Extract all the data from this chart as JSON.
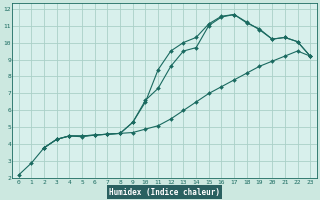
{
  "xlabel": "Humidex (Indice chaleur)",
  "bg_color": "#cce8e0",
  "plot_bg_color": "#d8f0ec",
  "label_bg_color": "#2a6060",
  "grid_color": "#aad0c8",
  "line_color": "#1a6a60",
  "label_fg_color": "#ffffff",
  "xlim": [
    -0.5,
    23.5
  ],
  "ylim": [
    2,
    12.3
  ],
  "xticks": [
    0,
    1,
    2,
    3,
    4,
    5,
    6,
    7,
    8,
    9,
    10,
    11,
    12,
    13,
    14,
    15,
    16,
    17,
    18,
    19,
    20,
    21,
    22,
    23
  ],
  "yticks": [
    2,
    3,
    4,
    5,
    6,
    7,
    8,
    9,
    10,
    11,
    12
  ],
  "line1_x": [
    0,
    1,
    2,
    3,
    4,
    5,
    6,
    7,
    8,
    9,
    10,
    11,
    12,
    13,
    14,
    15,
    16,
    17,
    18,
    19,
    20,
    21,
    22,
    23
  ],
  "line1_y": [
    2.2,
    2.9,
    3.8,
    4.3,
    4.5,
    4.45,
    4.55,
    4.6,
    4.65,
    4.7,
    4.9,
    5.1,
    5.5,
    6.0,
    6.5,
    7.0,
    7.4,
    7.8,
    8.2,
    8.6,
    8.9,
    9.2,
    9.5,
    9.2
  ],
  "line2_x": [
    2,
    3,
    4,
    5,
    6,
    7,
    8,
    9,
    10,
    11,
    12,
    13,
    14,
    15,
    16,
    17,
    18,
    19,
    20,
    21,
    22,
    23
  ],
  "line2_y": [
    3.8,
    4.3,
    4.5,
    4.5,
    4.55,
    4.6,
    4.65,
    5.3,
    6.5,
    8.4,
    9.5,
    10.0,
    10.3,
    11.1,
    11.55,
    11.65,
    11.15,
    10.8,
    10.2,
    10.3,
    10.05,
    9.2
  ],
  "line3_x": [
    2,
    3,
    4,
    5,
    6,
    7,
    8,
    9,
    10,
    11,
    12,
    13,
    14,
    15,
    16,
    17,
    18,
    19,
    20,
    21,
    22,
    23
  ],
  "line3_y": [
    3.8,
    4.3,
    4.5,
    4.5,
    4.55,
    4.6,
    4.65,
    5.3,
    6.6,
    7.3,
    8.6,
    9.5,
    9.7,
    11.0,
    11.5,
    11.65,
    11.2,
    10.75,
    10.2,
    10.3,
    10.05,
    9.2
  ]
}
